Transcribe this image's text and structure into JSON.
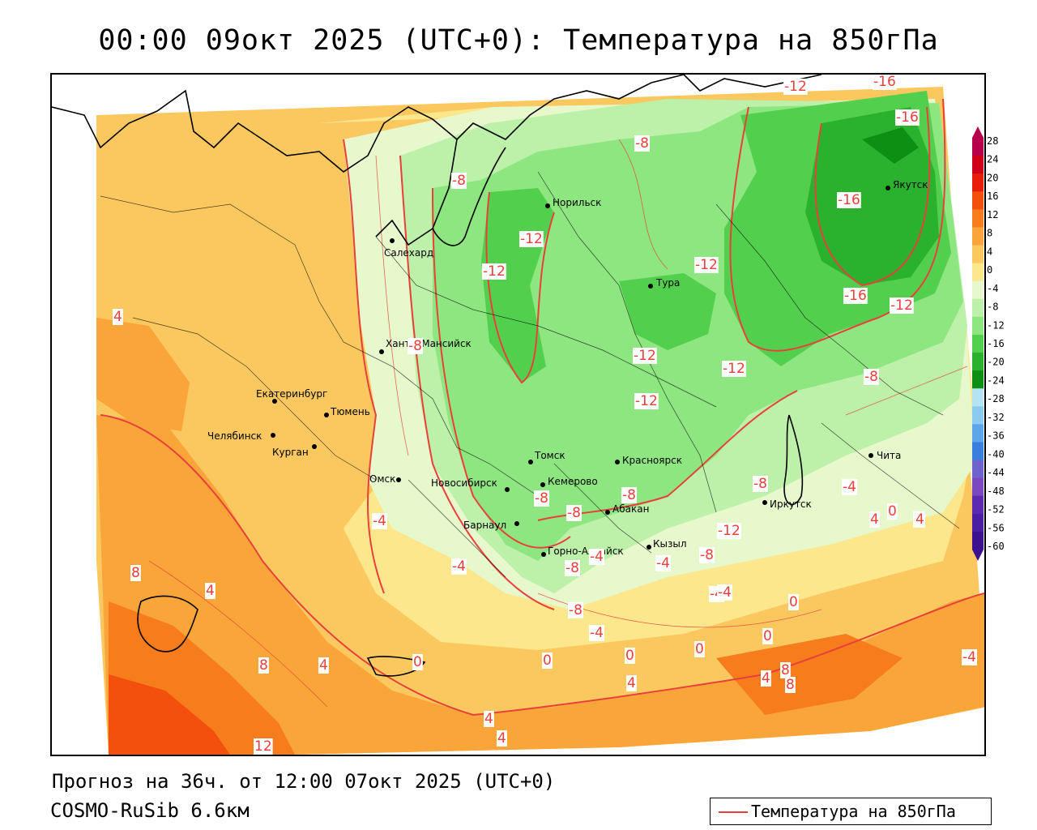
{
  "title": "00:00 09окт 2025 (UTC+0): Температура на 850гПа",
  "footer": {
    "forecast": "Прогноз на 36ч. от 12:00 07окт 2025 (UTC+0)",
    "model": "COSMO-RuSib 6.6км"
  },
  "legend": {
    "line_label": "Температура на 850гПа",
    "line_color": "#e8403a"
  },
  "colorbar": {
    "labels": [
      "28",
      "24",
      "20",
      "16",
      "12",
      "8",
      "4",
      "0",
      "-4",
      "-8",
      "-12",
      "-16",
      "-20",
      "-24",
      "-28",
      "-32",
      "-36",
      "-40",
      "-44",
      "-48",
      "-52",
      "-56",
      "-60"
    ],
    "colors": [
      "#b8004a",
      "#d0001a",
      "#e81e0a",
      "#f2500c",
      "#f77c1c",
      "#f9a53a",
      "#fbc860",
      "#fde78c",
      "#e6f8cc",
      "#bdf0a8",
      "#8ee681",
      "#52d04d",
      "#2ab12d",
      "#0d8f14",
      "#b6e3f3",
      "#8ccbf0",
      "#5ea6ea",
      "#3a7fdd",
      "#6e62cd",
      "#7b48c0",
      "#5b2ab1",
      "#4a1ea0",
      "#3b1190"
    ]
  },
  "cities": [
    {
      "name": "Норильск"
    },
    {
      "name": "Якутск"
    },
    {
      "name": "Салехард"
    },
    {
      "name": "Тура"
    },
    {
      "name": "Ханты-Мансийск"
    },
    {
      "name": "Екатеринбург"
    },
    {
      "name": "Тюмень"
    },
    {
      "name": "Челябинск"
    },
    {
      "name": "Курган"
    },
    {
      "name": "Омск"
    },
    {
      "name": "Новосибирск"
    },
    {
      "name": "Томск"
    },
    {
      "name": "Красноярск"
    },
    {
      "name": "Кемерово"
    },
    {
      "name": "Барнаул"
    },
    {
      "name": "Абакан"
    },
    {
      "name": "Иркутск"
    },
    {
      "name": "Чита"
    },
    {
      "name": "Кызыл"
    },
    {
      "name": "Горно-Алтайск"
    }
  ],
  "contour_labels": [
    "-12",
    "-16",
    "-16",
    "-8",
    "-8",
    "-12",
    "-12",
    "-16",
    "-12",
    "-16",
    "-12",
    "-8",
    "-12",
    "-12",
    "-12",
    "-8",
    "-4",
    "-8",
    "-8",
    "-8",
    "-8",
    "-8",
    "-4",
    "-12",
    "0",
    "4",
    "-4",
    "-8",
    "-4",
    "0",
    "4",
    "4",
    "8",
    "4",
    "8",
    "4",
    "0",
    "0",
    "4",
    "-4",
    "-8",
    "-4",
    "-4",
    "0",
    "0",
    "0",
    "-4",
    "8",
    "8",
    "4",
    "4",
    "4",
    "12",
    "4",
    "-4"
  ]
}
